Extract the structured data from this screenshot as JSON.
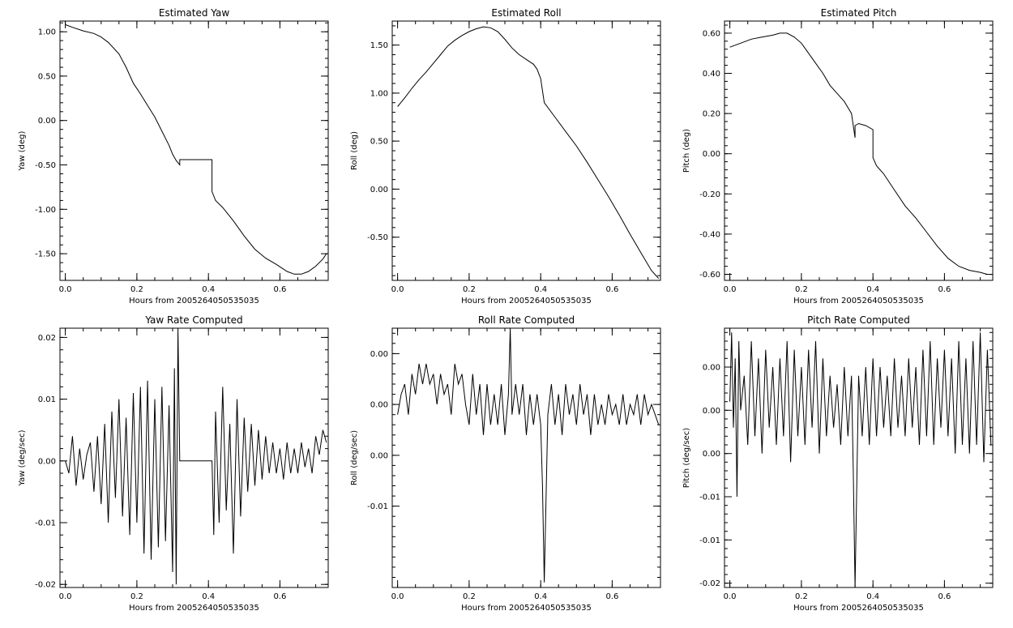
{
  "chart_data": [
    {
      "type": "line",
      "title": "Estimated Yaw",
      "xlabel": "Hours from 2005264050535035",
      "ylabel": "Yaw (deg)",
      "xlim": [
        -0.015,
        0.735
      ],
      "ylim": [
        -1.8,
        1.12
      ],
      "xticks": [
        0.0,
        0.2,
        0.4,
        0.6
      ],
      "xtick_labels": [
        "0.0",
        "0.2",
        "0.4",
        "0.6"
      ],
      "yticks": [
        1.0,
        0.5,
        0.0,
        -0.5,
        -1.0,
        -1.5
      ],
      "ytick_labels": [
        "1.00",
        "0.50",
        "0.00",
        "-0.50",
        "-1.00",
        "-1.50"
      ],
      "x": [
        0.0,
        0.02,
        0.05,
        0.08,
        0.1,
        0.12,
        0.15,
        0.17,
        0.19,
        0.21,
        0.23,
        0.25,
        0.27,
        0.29,
        0.3,
        0.31,
        0.32,
        0.32,
        0.35,
        0.38,
        0.41,
        0.41,
        0.42,
        0.44,
        0.47,
        0.5,
        0.53,
        0.56,
        0.59,
        0.62,
        0.64,
        0.66,
        0.68,
        0.7,
        0.72,
        0.73
      ],
      "y": [
        1.08,
        1.05,
        1.01,
        0.98,
        0.94,
        0.88,
        0.75,
        0.6,
        0.42,
        0.3,
        0.17,
        0.04,
        -0.12,
        -0.28,
        -0.38,
        -0.45,
        -0.5,
        -0.44,
        -0.44,
        -0.44,
        -0.44,
        -0.8,
        -0.9,
        -0.98,
        -1.13,
        -1.3,
        -1.45,
        -1.55,
        -1.62,
        -1.7,
        -1.73,
        -1.73,
        -1.7,
        -1.64,
        -1.56,
        -1.5
      ]
    },
    {
      "type": "line",
      "title": "Estimated Roll",
      "xlabel": "Hours from 2005264050535035",
      "ylabel": "Roll (deg)",
      "xlim": [
        -0.015,
        0.735
      ],
      "ylim": [
        -0.95,
        1.75
      ],
      "xticks": [
        0.0,
        0.2,
        0.4,
        0.6
      ],
      "xtick_labels": [
        "0.0",
        "0.2",
        "0.4",
        "0.6"
      ],
      "yticks": [
        1.5,
        1.0,
        0.5,
        0.0,
        -0.5
      ],
      "ytick_labels": [
        "1.50",
        "1.00",
        "0.50",
        "0.00",
        "-0.50"
      ],
      "x": [
        0.0,
        0.02,
        0.04,
        0.06,
        0.08,
        0.1,
        0.12,
        0.14,
        0.16,
        0.18,
        0.2,
        0.22,
        0.24,
        0.26,
        0.28,
        0.3,
        0.32,
        0.34,
        0.36,
        0.38,
        0.39,
        0.4,
        0.41,
        0.44,
        0.47,
        0.5,
        0.53,
        0.56,
        0.59,
        0.62,
        0.65,
        0.68,
        0.71,
        0.73
      ],
      "y": [
        0.86,
        0.95,
        1.05,
        1.14,
        1.22,
        1.31,
        1.4,
        1.49,
        1.55,
        1.6,
        1.64,
        1.67,
        1.69,
        1.68,
        1.64,
        1.56,
        1.47,
        1.4,
        1.35,
        1.3,
        1.25,
        1.15,
        0.9,
        0.75,
        0.6,
        0.45,
        0.28,
        0.1,
        -0.08,
        -0.27,
        -0.47,
        -0.66,
        -0.85,
        -0.93
      ]
    },
    {
      "type": "line",
      "title": "Estimated Pitch",
      "xlabel": "Hours from 2005264050535035",
      "ylabel": "Pitch (deg)",
      "xlim": [
        -0.015,
        0.735
      ],
      "ylim": [
        -0.63,
        0.66
      ],
      "xticks": [
        0.0,
        0.2,
        0.4,
        0.6
      ],
      "xtick_labels": [
        "0.0",
        "0.2",
        "0.4",
        "0.6"
      ],
      "yticks": [
        0.6,
        0.4,
        0.2,
        0.0,
        -0.2,
        -0.4,
        -0.6
      ],
      "ytick_labels": [
        "0.60",
        "0.40",
        "0.20",
        "0.00",
        "-0.20",
        "-0.40",
        "-0.60"
      ],
      "x": [
        0.0,
        0.03,
        0.06,
        0.09,
        0.12,
        0.14,
        0.16,
        0.18,
        0.2,
        0.22,
        0.24,
        0.26,
        0.28,
        0.3,
        0.32,
        0.34,
        0.35,
        0.35,
        0.36,
        0.38,
        0.4,
        0.4,
        0.41,
        0.43,
        0.46,
        0.49,
        0.52,
        0.55,
        0.58,
        0.61,
        0.64,
        0.67,
        0.7,
        0.72
      ],
      "y": [
        0.53,
        0.55,
        0.57,
        0.58,
        0.59,
        0.6,
        0.6,
        0.58,
        0.55,
        0.5,
        0.45,
        0.4,
        0.34,
        0.3,
        0.26,
        0.2,
        0.08,
        0.14,
        0.15,
        0.14,
        0.12,
        -0.02,
        -0.06,
        -0.1,
        -0.18,
        -0.26,
        -0.32,
        -0.39,
        -0.46,
        -0.52,
        -0.56,
        -0.58,
        -0.59,
        -0.6
      ]
    },
    {
      "type": "line",
      "title": "Yaw Rate Computed",
      "xlabel": "Hours from 2005264050535035",
      "ylabel": "Yaw (deg/sec)",
      "xlim": [
        -0.015,
        0.735
      ],
      "ylim": [
        -0.0205,
        0.0215
      ],
      "xticks": [
        0.0,
        0.2,
        0.4,
        0.6
      ],
      "xtick_labels": [
        "0.0",
        "0.2",
        "0.4",
        "0.6"
      ],
      "yticks": [
        0.02,
        0.01,
        0.0,
        -0.01,
        -0.02
      ],
      "ytick_labels": [
        "0.02",
        "0.01",
        "0.00",
        "-0.01",
        "-0.02"
      ],
      "x": [
        0.0,
        0.01,
        0.02,
        0.03,
        0.04,
        0.05,
        0.06,
        0.07,
        0.08,
        0.09,
        0.1,
        0.11,
        0.12,
        0.13,
        0.14,
        0.15,
        0.16,
        0.17,
        0.18,
        0.19,
        0.2,
        0.21,
        0.22,
        0.23,
        0.24,
        0.25,
        0.26,
        0.27,
        0.28,
        0.29,
        0.3,
        0.305,
        0.31,
        0.315,
        0.32,
        0.33,
        0.36,
        0.39,
        0.41,
        0.415,
        0.42,
        0.43,
        0.44,
        0.45,
        0.46,
        0.47,
        0.48,
        0.49,
        0.5,
        0.51,
        0.52,
        0.53,
        0.54,
        0.55,
        0.56,
        0.57,
        0.58,
        0.59,
        0.6,
        0.61,
        0.62,
        0.63,
        0.64,
        0.65,
        0.66,
        0.67,
        0.68,
        0.69,
        0.7,
        0.71,
        0.72,
        0.73
      ],
      "y": [
        0.0,
        -0.002,
        0.004,
        -0.004,
        0.002,
        -0.003,
        0.001,
        0.003,
        -0.005,
        0.004,
        -0.007,
        0.006,
        -0.01,
        0.008,
        -0.006,
        0.01,
        -0.009,
        0.007,
        -0.012,
        0.011,
        -0.01,
        0.012,
        -0.015,
        0.013,
        -0.016,
        0.01,
        -0.014,
        0.012,
        -0.013,
        0.009,
        -0.018,
        0.015,
        -0.02,
        0.0215,
        0.0,
        0.0,
        0.0,
        0.0,
        0.0,
        -0.012,
        0.008,
        -0.01,
        0.012,
        -0.008,
        0.006,
        -0.015,
        0.01,
        -0.009,
        0.007,
        -0.005,
        0.006,
        -0.004,
        0.005,
        -0.003,
        0.004,
        -0.002,
        0.003,
        -0.002,
        0.002,
        -0.003,
        0.003,
        -0.002,
        0.002,
        -0.002,
        0.003,
        -0.001,
        0.002,
        -0.002,
        0.004,
        0.001,
        0.005,
        0.003
      ]
    },
    {
      "type": "line",
      "title": "Roll Rate Computed",
      "xlabel": "Hours from 2005264050535035",
      "ylabel": "Roll (deg/sec)",
      "xlim": [
        -0.015,
        0.735
      ],
      "ylim": [
        -0.018,
        0.0075
      ],
      "xticks": [
        0.0,
        0.2,
        0.4,
        0.6
      ],
      "xtick_labels": [
        "0.0",
        "0.2",
        "0.4",
        "0.6"
      ],
      "yticks": [
        0.005,
        0.0,
        -0.005,
        -0.01
      ],
      "ytick_labels": [
        "0.00",
        "0.00",
        "0.00",
        "-0.01"
      ],
      "x": [
        0.0,
        0.01,
        0.02,
        0.03,
        0.04,
        0.05,
        0.06,
        0.07,
        0.08,
        0.09,
        0.1,
        0.11,
        0.12,
        0.13,
        0.14,
        0.15,
        0.16,
        0.17,
        0.18,
        0.19,
        0.2,
        0.21,
        0.22,
        0.23,
        0.24,
        0.25,
        0.26,
        0.27,
        0.28,
        0.29,
        0.3,
        0.31,
        0.315,
        0.32,
        0.33,
        0.34,
        0.35,
        0.36,
        0.37,
        0.38,
        0.39,
        0.4,
        0.405,
        0.41,
        0.42,
        0.43,
        0.44,
        0.45,
        0.46,
        0.47,
        0.48,
        0.49,
        0.5,
        0.51,
        0.52,
        0.53,
        0.54,
        0.55,
        0.56,
        0.57,
        0.58,
        0.59,
        0.6,
        0.61,
        0.62,
        0.63,
        0.64,
        0.65,
        0.66,
        0.67,
        0.68,
        0.69,
        0.7,
        0.71,
        0.72,
        0.73
      ],
      "y": [
        -0.001,
        0.001,
        0.002,
        -0.001,
        0.003,
        0.001,
        0.004,
        0.002,
        0.004,
        0.002,
        0.003,
        0.0,
        0.003,
        0.001,
        0.002,
        -0.001,
        0.004,
        0.002,
        0.003,
        0.0,
        -0.002,
        0.003,
        -0.001,
        0.002,
        -0.003,
        0.002,
        -0.002,
        0.001,
        -0.002,
        0.002,
        -0.003,
        0.001,
        0.0075,
        -0.001,
        0.002,
        -0.001,
        0.002,
        -0.003,
        0.001,
        -0.002,
        0.001,
        -0.002,
        -0.008,
        -0.0175,
        -0.001,
        0.002,
        -0.002,
        0.001,
        -0.003,
        0.002,
        -0.001,
        0.001,
        -0.002,
        0.002,
        -0.001,
        0.001,
        -0.003,
        0.001,
        -0.002,
        0.0,
        -0.002,
        0.001,
        -0.001,
        0.0,
        -0.002,
        0.001,
        -0.002,
        0.0,
        -0.001,
        0.001,
        -0.002,
        0.001,
        -0.001,
        0.0,
        -0.001,
        -0.002
      ]
    },
    {
      "type": "line",
      "title": "Pitch Rate Computed",
      "xlabel": "Hours from 2005264050535035",
      "ylabel": "Pitch (deg/sec)",
      "xlim": [
        -0.015,
        0.735
      ],
      "ylim": [
        -0.0205,
        0.0095
      ],
      "xticks": [
        0.0,
        0.2,
        0.4,
        0.6
      ],
      "xtick_labels": [
        "0.0",
        "0.2",
        "0.4",
        "0.6"
      ],
      "yticks": [
        0.005,
        0.0,
        -0.005,
        -0.01,
        -0.015,
        -0.02
      ],
      "ytick_labels": [
        "0.00",
        "0.00",
        "0.00",
        "-0.01",
        "-0.01",
        "-0.02"
      ],
      "x": [
        0.0,
        0.005,
        0.01,
        0.015,
        0.02,
        0.025,
        0.03,
        0.04,
        0.05,
        0.06,
        0.07,
        0.08,
        0.09,
        0.1,
        0.11,
        0.12,
        0.13,
        0.14,
        0.15,
        0.16,
        0.17,
        0.18,
        0.19,
        0.2,
        0.21,
        0.22,
        0.23,
        0.24,
        0.25,
        0.26,
        0.27,
        0.28,
        0.29,
        0.3,
        0.31,
        0.32,
        0.33,
        0.34,
        0.345,
        0.35,
        0.36,
        0.37,
        0.38,
        0.39,
        0.4,
        0.41,
        0.42,
        0.43,
        0.44,
        0.45,
        0.46,
        0.47,
        0.48,
        0.49,
        0.5,
        0.51,
        0.52,
        0.53,
        0.54,
        0.55,
        0.56,
        0.57,
        0.58,
        0.59,
        0.6,
        0.61,
        0.62,
        0.63,
        0.64,
        0.65,
        0.66,
        0.67,
        0.68,
        0.69,
        0.7,
        0.71,
        0.72,
        0.73
      ],
      "y": [
        0.001,
        0.009,
        -0.002,
        0.006,
        -0.01,
        0.008,
        0.0,
        0.004,
        -0.004,
        0.008,
        -0.003,
        0.006,
        -0.005,
        0.007,
        -0.002,
        0.005,
        -0.004,
        0.006,
        -0.003,
        0.008,
        -0.006,
        0.007,
        -0.003,
        0.005,
        -0.004,
        0.007,
        -0.002,
        0.008,
        -0.005,
        0.006,
        -0.003,
        0.004,
        -0.002,
        0.003,
        -0.004,
        0.005,
        -0.003,
        0.004,
        -0.007,
        -0.0205,
        0.004,
        -0.003,
        0.005,
        -0.004,
        0.006,
        -0.003,
        0.005,
        -0.002,
        0.004,
        -0.003,
        0.006,
        -0.002,
        0.004,
        -0.003,
        0.006,
        -0.002,
        0.005,
        -0.004,
        0.007,
        -0.003,
        0.008,
        -0.004,
        0.006,
        -0.002,
        0.007,
        -0.003,
        0.006,
        -0.005,
        0.008,
        -0.004,
        0.006,
        -0.005,
        0.008,
        -0.004,
        0.009,
        -0.006,
        0.007,
        -0.004
      ]
    }
  ]
}
